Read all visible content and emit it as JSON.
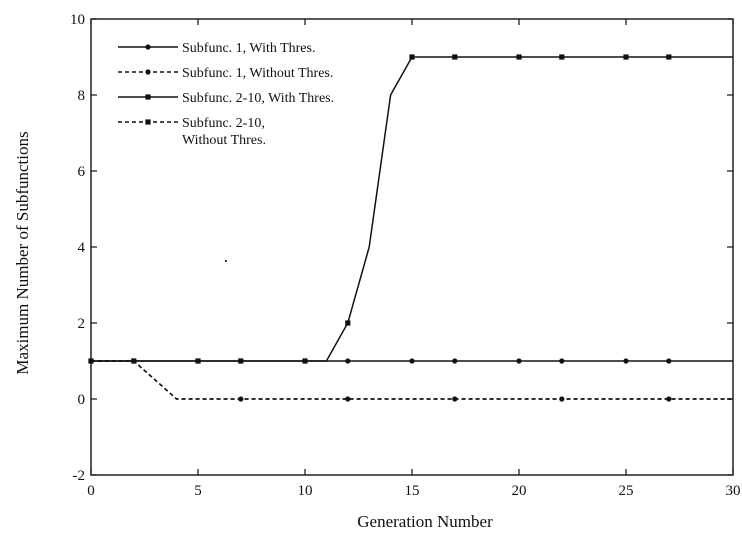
{
  "chart_data": {
    "type": "line",
    "title": "",
    "xlabel": "Generation Number",
    "ylabel": "Maximum Number of Subfunctions",
    "xlim": [
      0,
      30
    ],
    "ylim": [
      -2,
      10
    ],
    "xticks": [
      "0",
      "5",
      "10",
      "15",
      "20",
      "25",
      "30"
    ],
    "yticks": [
      "-2",
      "0",
      "2",
      "4",
      "6",
      "8",
      "10"
    ],
    "grid": false,
    "legend_position": "top-left",
    "series": [
      {
        "name": "Subfunc. 1, With Thres.",
        "line_style": "solid",
        "marker": "dot",
        "color": "#111111",
        "x": [
          0,
          2,
          5,
          7,
          10,
          12,
          15,
          17,
          20,
          22,
          25,
          27,
          30
        ],
        "y": [
          1,
          1,
          1,
          1,
          1,
          1,
          1,
          1,
          1,
          1,
          1,
          1,
          1
        ],
        "marker_x": [
          0,
          2,
          5,
          7,
          10,
          12,
          15,
          17,
          20,
          22,
          25,
          27
        ]
      },
      {
        "name": "Subfunc. 1, Without Thres.",
        "line_style": "dashed",
        "marker": "dot",
        "color": "#111111",
        "x": [
          0,
          2,
          4,
          7,
          12,
          17,
          22,
          27,
          30
        ],
        "y": [
          1,
          1,
          0,
          0,
          0,
          0,
          0,
          0,
          0
        ],
        "marker_x": [
          0,
          2,
          7,
          12,
          17,
          22,
          27
        ]
      },
      {
        "name": "Subfunc. 2-10, With Thres.",
        "line_style": "solid",
        "marker": "square",
        "color": "#111111",
        "x": [
          0,
          2,
          5,
          7,
          10,
          11,
          12,
          13,
          14,
          15,
          17,
          20,
          22,
          25,
          27,
          30
        ],
        "y": [
          1,
          1,
          1,
          1,
          1,
          1,
          2,
          4,
          8,
          9,
          9,
          9,
          9,
          9,
          9,
          9
        ],
        "marker_x": [
          0,
          2,
          5,
          7,
          10,
          12,
          15,
          17,
          20,
          22,
          25,
          27
        ]
      },
      {
        "name_lines": [
          "Subfunc. 2-10,",
          "Without Thres."
        ],
        "line_style": "dashed",
        "marker": "square",
        "color": "#111111",
        "x": [
          0,
          2,
          4,
          7,
          12,
          17,
          22,
          27,
          30
        ],
        "y": [
          1,
          1,
          0,
          0,
          0,
          0,
          0,
          0,
          0
        ],
        "marker_x": []
      }
    ],
    "annotations": [
      {
        "text": "·",
        "x": 6.3,
        "y": 3.6
      }
    ]
  }
}
